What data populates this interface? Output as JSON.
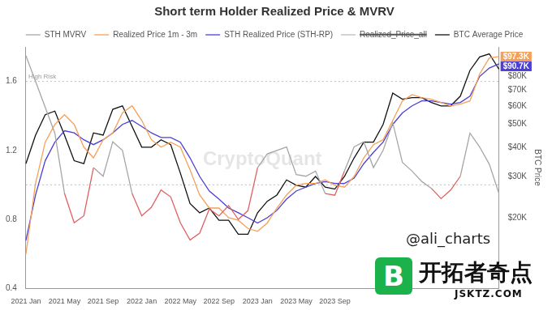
{
  "chart_data": {
    "type": "line",
    "title": "Short term Holder Realized Price & MVRV",
    "categories": [
      "2021 Jan",
      null,
      null,
      null,
      "2021 May",
      null,
      null,
      null,
      "2021 Sep",
      null,
      null,
      null,
      "2022 Jan",
      null,
      null,
      null,
      "2022 May",
      null,
      null,
      null,
      "2022 Sep",
      null,
      null,
      null,
      "2023 Jan",
      null,
      null,
      null,
      "2023 May",
      null,
      null,
      null,
      "2023 Sep",
      null,
      null,
      null,
      null,
      null,
      null,
      null,
      null,
      null,
      null,
      null,
      null,
      null,
      null,
      null,
      null,
      null
    ],
    "series": [
      {
        "name": "STH MVRV",
        "color": "#a6a6a6",
        "values": [
          1.75,
          1.6,
          1.45,
          1.3,
          0.95,
          0.78,
          0.82,
          1.1,
          1.05,
          1.25,
          1.2,
          0.95,
          0.82,
          0.87,
          0.97,
          0.93,
          0.78,
          0.68,
          0.72,
          0.86,
          0.82,
          0.88,
          0.8,
          0.85,
          1.1,
          1.18,
          1.2,
          1.22,
          1.06,
          1.05,
          1.08,
          0.95,
          0.94,
          1.08,
          1.22,
          1.25,
          1.1,
          1.2,
          1.36,
          1.13,
          1.08,
          1.02,
          0.98,
          0.92,
          0.97,
          1.05,
          1.3,
          1.22,
          1.12,
          0.95
        ],
        "colors": [
          "#a6a6a6",
          "#a6a6a6",
          "#a6a6a6",
          "#a6a6a6",
          "#e06060",
          "#e06060",
          "#e06060",
          "#a6a6a6",
          "#a6a6a6",
          "#a6a6a6",
          "#a6a6a6",
          "#e06060",
          "#e06060",
          "#e06060",
          "#e06060",
          "#e06060",
          "#e06060",
          "#e06060",
          "#e06060",
          "#e06060",
          "#e06060",
          "#e06060",
          "#e06060",
          "#e06060",
          "#a6a6a6",
          "#a6a6a6",
          "#a6a6a6",
          "#a6a6a6",
          "#a6a6a6",
          "#a6a6a6",
          "#a6a6a6",
          "#e06060",
          "#e06060",
          "#a6a6a6",
          "#a6a6a6",
          "#a6a6a6",
          "#a6a6a6",
          "#a6a6a6",
          "#a6a6a6",
          "#a6a6a6",
          "#a6a6a6",
          "#a6a6a6",
          "#e06060",
          "#e06060",
          "#e06060",
          "#a6a6a6",
          "#a6a6a6",
          "#a6a6a6",
          "#a6a6a6",
          "#e06060"
        ]
      },
      {
        "name": "Realized Price 1m - 3m",
        "color": "#f5a05a",
        "axis": "y2",
        "last_label": "$97.3K",
        "values": [
          14000,
          28000,
          42000,
          50000,
          55000,
          50000,
          40000,
          36000,
          43000,
          46000,
          56000,
          60000,
          52000,
          43000,
          40000,
          42000,
          40000,
          32000,
          25000,
          22000,
          22000,
          20000,
          19500,
          18000,
          17500,
          19000,
          22000,
          25000,
          27500,
          28000,
          28000,
          29000,
          27500,
          27000,
          30000,
          36000,
          41000,
          43000,
          52000,
          63000,
          67000,
          65000,
          64000,
          62000,
          60000,
          61000,
          63000,
          82000,
          96000,
          97300
        ]
      },
      {
        "name": "STH Realized Price (STH-RP)",
        "color": "#4b3fd6",
        "axis": "y2",
        "last_label": "$90.7K",
        "values": [
          16000,
          25000,
          35000,
          42000,
          47000,
          46000,
          43000,
          41000,
          43000,
          46000,
          50000,
          52000,
          49000,
          46000,
          44000,
          44000,
          42000,
          36000,
          30000,
          26000,
          24000,
          22000,
          21000,
          20000,
          19000,
          20000,
          21500,
          24000,
          26000,
          27000,
          28000,
          28500,
          28000,
          28000,
          29500,
          34000,
          38000,
          42000,
          50000,
          56000,
          60000,
          63000,
          63000,
          62000,
          61000,
          62000,
          66000,
          80000,
          87000,
          90700
        ]
      },
      {
        "name": "Realized_Price_all",
        "color": "#bbbbbb",
        "axis": "y2",
        "line_style": "dashed",
        "values": [
          null,
          null,
          null,
          null,
          null,
          null,
          null,
          null,
          null,
          null,
          null,
          null,
          null,
          null,
          null,
          null,
          null,
          null,
          null,
          null,
          null,
          null,
          null,
          null,
          null,
          null,
          null,
          null,
          null,
          null,
          null,
          null,
          null,
          null,
          null,
          null,
          null,
          null,
          null,
          null,
          null,
          null,
          null,
          null,
          null,
          null,
          null,
          null,
          null,
          null
        ]
      },
      {
        "name": "BTC Average Price",
        "color": "#111111",
        "axis": "y2",
        "values": [
          34000,
          45000,
          55000,
          57000,
          45000,
          35000,
          34000,
          46000,
          45000,
          58000,
          60000,
          49000,
          40000,
          40000,
          43000,
          41000,
          31000,
          23000,
          21000,
          22000,
          19500,
          19500,
          17000,
          17000,
          21000,
          23500,
          25000,
          29000,
          27500,
          27000,
          30000,
          27000,
          26500,
          30000,
          36000,
          42000,
          42000,
          50000,
          68000,
          64000,
          65000,
          65000,
          62000,
          60000,
          60000,
          66000,
          85000,
          97000,
          100000,
          86000
        ]
      }
    ],
    "ylim": [
      0.4,
      1.8
    ],
    "yticks": [
      0.4,
      0.8,
      1.2,
      1.6
    ],
    "y2lim": [
      10000,
      107000
    ],
    "y2ticks": [
      {
        "value": 20000,
        "label": "$20K"
      },
      {
        "value": 30000,
        "label": "$30K"
      },
      {
        "value": 40000,
        "label": "$40K"
      },
      {
        "value": 50000,
        "label": "$50K"
      },
      {
        "value": 60000,
        "label": "$60K"
      },
      {
        "value": 70000,
        "label": "$70K"
      },
      {
        "value": 80000,
        "label": "$80K"
      }
    ],
    "y2_label": "BTC Price",
    "log": "y2",
    "grid": false,
    "legend": "top",
    "reference_lines": [
      {
        "value": 1.6,
        "label": "High Risk"
      },
      {
        "value": 1
      }
    ],
    "watermark": "CryptoQuant",
    "credits": [
      "@ali_charts",
      "B",
      "开拓者奇点",
      "JSKTZ.COM"
    ]
  }
}
